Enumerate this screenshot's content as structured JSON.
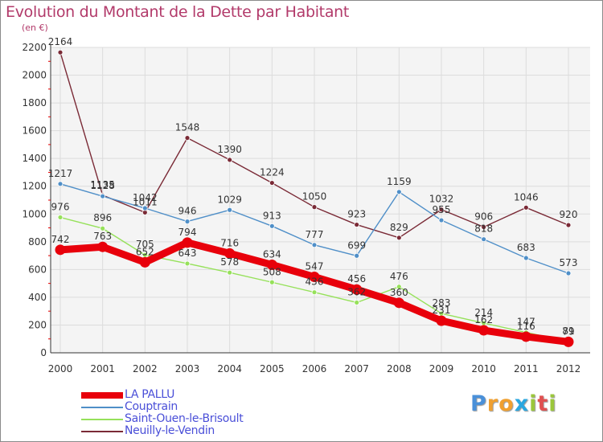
{
  "title": "Evolution du Montant de la Dette par Habitant",
  "subtitle": "(en €)",
  "brand": {
    "text": "Proxiti",
    "colors": [
      "#4a90d9",
      "#f0a030",
      "#f0a030",
      "#2aa7e0",
      "#9bc73b",
      "#e05050",
      "#9bc73b"
    ]
  },
  "chart_data": {
    "type": "line",
    "x": [
      2000,
      2001,
      2002,
      2003,
      2004,
      2005,
      2006,
      2007,
      2008,
      2009,
      2010,
      2011,
      2012
    ],
    "ylim": [
      0,
      2200
    ],
    "yticks": [
      0,
      200,
      400,
      600,
      800,
      1000,
      1200,
      1400,
      1600,
      1800,
      2000,
      2200
    ],
    "grid": true,
    "legend_position": "bottom-left",
    "series": [
      {
        "name": "LA PALLU",
        "color": "#e8000b",
        "values": [
          742,
          763,
          652,
          794,
          716,
          634,
          547,
          456,
          360,
          231,
          162,
          116,
          79
        ]
      },
      {
        "name": "Couptrain",
        "color": "#4f8fc8",
        "values": [
          1217,
          1128,
          1042,
          946,
          1029,
          913,
          777,
          699,
          1159,
          955,
          818,
          683,
          573
        ]
      },
      {
        "name": "Saint-Ouen-le-Brisoult",
        "color": "#96e15a",
        "values": [
          976,
          896,
          705,
          643,
          578,
          508,
          436,
          362,
          476,
          283,
          214,
          147,
          81
        ]
      },
      {
        "name": "Neuilly-le-Vendin",
        "color": "#7a2a36",
        "values": [
          2164,
          1135,
          1011,
          1548,
          1390,
          1224,
          1050,
          923,
          829,
          1032,
          906,
          1046,
          920
        ]
      }
    ]
  }
}
